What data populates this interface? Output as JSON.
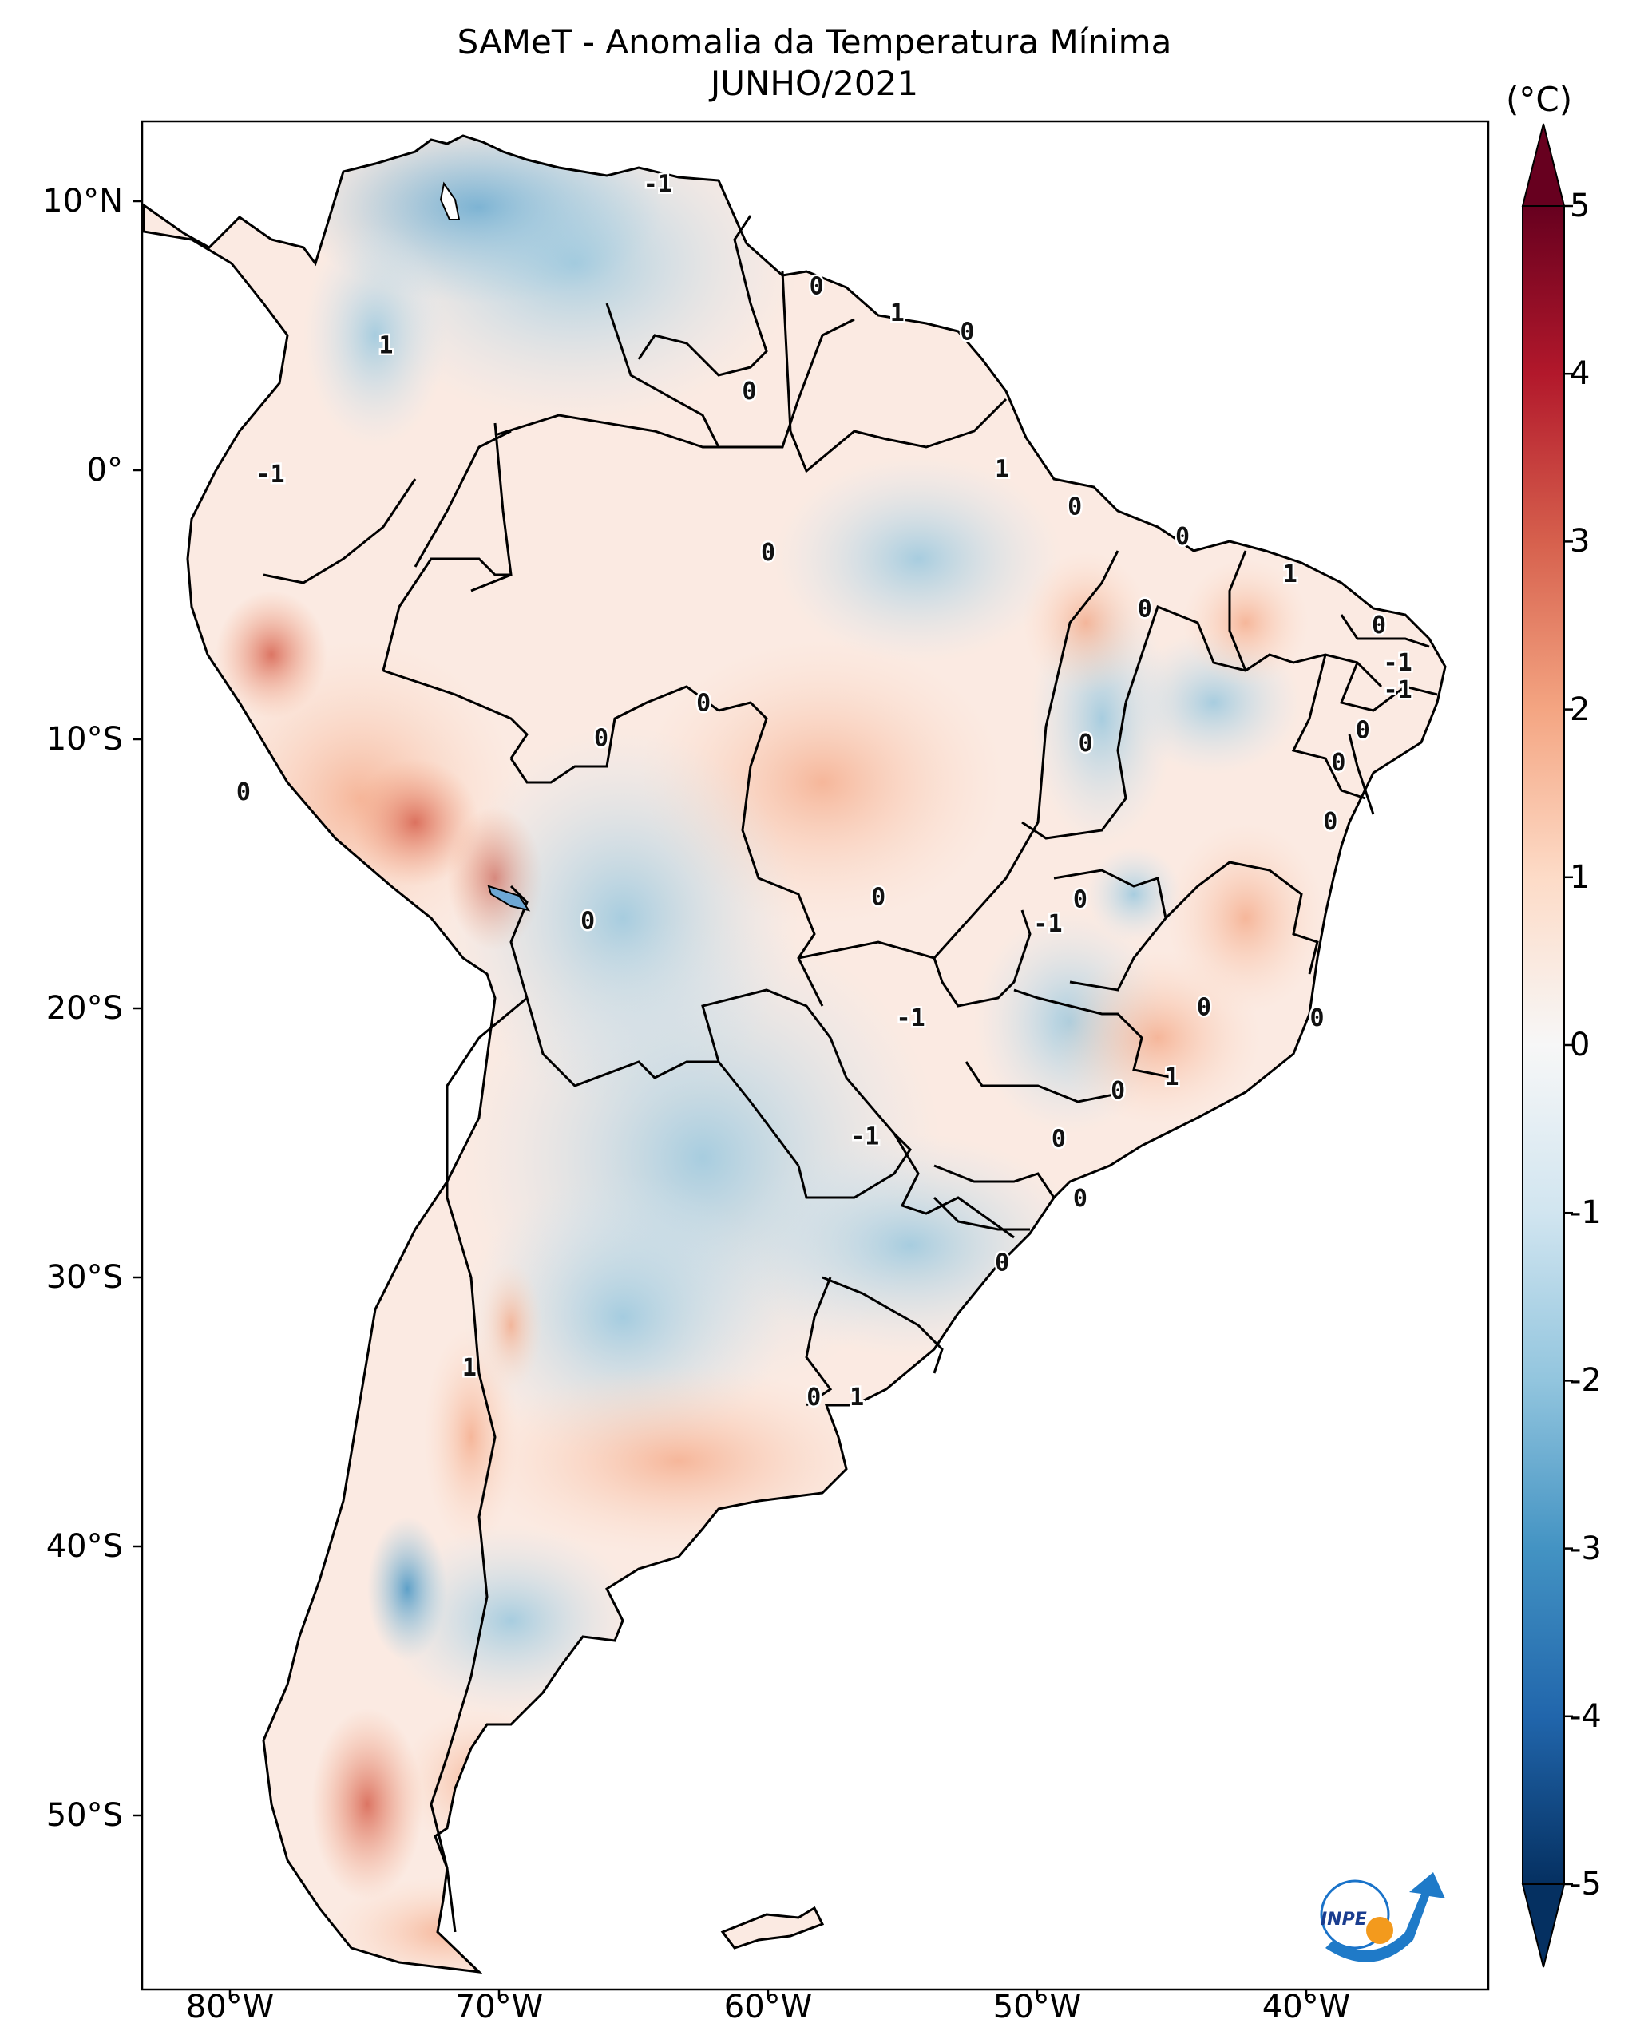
{
  "title": "SAMeT - Anomalia da Temperatura Mínima",
  "subtitle": "JUNHO/2021",
  "lat_ticks": [
    {
      "deg": 10,
      "label": "10°N"
    },
    {
      "deg": 0,
      "label": "0°"
    },
    {
      "deg": -10,
      "label": "10°S"
    },
    {
      "deg": -20,
      "label": "20°S"
    },
    {
      "deg": -30,
      "label": "30°S"
    },
    {
      "deg": -40,
      "label": "40°S"
    },
    {
      "deg": -50,
      "label": "50°S"
    }
  ],
  "lon_ticks": [
    {
      "deg": -80,
      "label": "80°W"
    },
    {
      "deg": -70,
      "label": "70°W"
    },
    {
      "deg": -60,
      "label": "60°W"
    },
    {
      "deg": -50,
      "label": "50°W"
    },
    {
      "deg": -40,
      "label": "40°W"
    }
  ],
  "colorbar": {
    "unit": "(°C)",
    "min": -5,
    "max": 5,
    "tick_values": [
      5,
      4,
      3,
      2,
      1,
      0,
      -1,
      -2,
      -3,
      -4,
      -5
    ],
    "tick_labels": [
      "5",
      "4",
      "3",
      "2",
      "1",
      "0",
      "-1",
      "-2",
      "-3",
      "-4",
      "-5"
    ],
    "colors": [
      "#053061",
      "#2166ac",
      "#4393c3",
      "#92c5de",
      "#d1e5f0",
      "#f7f7f7",
      "#fddbc7",
      "#f4a582",
      "#d6604d",
      "#b2182b",
      "#67001f"
    ]
  },
  "contour_labels": [
    {
      "text": "-1",
      "lon": -64.1,
      "lat": 10.6
    },
    {
      "text": "0",
      "lon": -58.2,
      "lat": 6.8
    },
    {
      "text": "1",
      "lon": -55.2,
      "lat": 5.8
    },
    {
      "text": "0",
      "lon": -52.6,
      "lat": 5.1
    },
    {
      "text": "0",
      "lon": -60.7,
      "lat": 2.9
    },
    {
      "text": "1",
      "lon": -74.2,
      "lat": 4.6
    },
    {
      "text": "-1",
      "lon": -78.5,
      "lat": -0.2
    },
    {
      "text": "1",
      "lon": -51.3,
      "lat": 0.0
    },
    {
      "text": "0",
      "lon": -48.6,
      "lat": -1.4
    },
    {
      "text": "0",
      "lon": -60.0,
      "lat": -3.1
    },
    {
      "text": "0",
      "lon": -44.6,
      "lat": -2.5
    },
    {
      "text": "1",
      "lon": -40.6,
      "lat": -3.9
    },
    {
      "text": "0",
      "lon": -46.0,
      "lat": -5.2
    },
    {
      "text": "0",
      "lon": -37.3,
      "lat": -5.8
    },
    {
      "text": "-1",
      "lon": -36.6,
      "lat": -7.2
    },
    {
      "text": "-1",
      "lon": -36.6,
      "lat": -8.2
    },
    {
      "text": "0",
      "lon": -37.9,
      "lat": -9.7
    },
    {
      "text": "0",
      "lon": -38.8,
      "lat": -10.9
    },
    {
      "text": "0",
      "lon": -48.2,
      "lat": -10.2
    },
    {
      "text": "0",
      "lon": -62.4,
      "lat": -8.7
    },
    {
      "text": "0",
      "lon": -66.2,
      "lat": -10.0
    },
    {
      "text": "0",
      "lon": -79.5,
      "lat": -12.0
    },
    {
      "text": "0",
      "lon": -39.1,
      "lat": -13.1
    },
    {
      "text": "0",
      "lon": -55.9,
      "lat": -15.9
    },
    {
      "text": "0",
      "lon": -48.4,
      "lat": -16.0
    },
    {
      "text": "-1",
      "lon": -49.6,
      "lat": -16.9
    },
    {
      "text": "0",
      "lon": -66.7,
      "lat": -16.8
    },
    {
      "text": "0",
      "lon": -43.8,
      "lat": -20.0
    },
    {
      "text": "-1",
      "lon": -54.7,
      "lat": -20.4
    },
    {
      "text": "0",
      "lon": -39.6,
      "lat": -20.4
    },
    {
      "text": "1",
      "lon": -45.0,
      "lat": -22.6
    },
    {
      "text": "0",
      "lon": -47.0,
      "lat": -23.1
    },
    {
      "text": "0",
      "lon": -49.2,
      "lat": -24.9
    },
    {
      "text": "-1",
      "lon": -56.4,
      "lat": -24.8
    },
    {
      "text": "0",
      "lon": -48.4,
      "lat": -27.1
    },
    {
      "text": "0",
      "lon": -51.3,
      "lat": -29.5
    },
    {
      "text": "1",
      "lon": -71.1,
      "lat": -33.4
    },
    {
      "text": "0",
      "lon": -58.3,
      "lat": -34.5
    },
    {
      "text": "1",
      "lon": -56.7,
      "lat": -34.5
    }
  ],
  "logo": {
    "text": "INPE"
  }
}
